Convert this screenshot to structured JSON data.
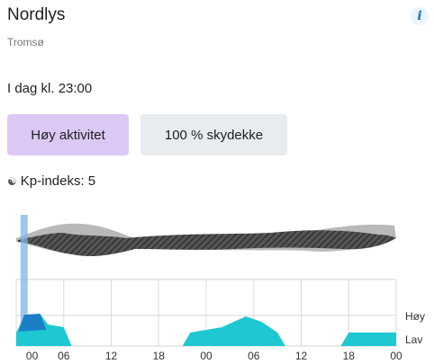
{
  "header": {
    "title": "Nordlys",
    "location": "Tromsø",
    "info_icon": "info-icon",
    "info_label": "i"
  },
  "forecast": {
    "time": "I dag kl. 23:00",
    "activity_label": "Høy aktivitet",
    "cloud_label": "100 % skydekke",
    "kp_label": "Kp-indeks: 5",
    "kp_icon": "aurora-icon"
  },
  "colors": {
    "activity_pill": "#dcc8f5",
    "cloud_pill": "#e9ecef",
    "aurora": "#1ec8d2",
    "aurora_high": "#1a7fc7",
    "selection": "#7fb6e8",
    "cloud_dark": "#3a3a3a",
    "cloud_light": "#b4b4b4"
  },
  "chart_data": {
    "type": "area",
    "x_ticks": [
      "00",
      "06",
      "12",
      "18",
      "00",
      "06",
      "12",
      "18",
      "00"
    ],
    "y_labels": [
      "Høy",
      "Lav"
    ],
    "aurora": [
      {
        "hour": 0,
        "level": 0.25
      },
      {
        "hour": 1,
        "level": 0.55
      },
      {
        "hour": 3,
        "level": 0.6
      },
      {
        "hour": 4,
        "level": 0.4
      },
      {
        "hour": 6,
        "level": 0.35
      },
      {
        "hour": 7,
        "level": 0
      },
      {
        "hour": 21,
        "level": 0
      },
      {
        "hour": 22,
        "level": 0.25
      },
      {
        "hour": 26,
        "level": 0.35
      },
      {
        "hour": 29,
        "level": 0.55
      },
      {
        "hour": 31,
        "level": 0.45
      },
      {
        "hour": 33,
        "level": 0.25
      },
      {
        "hour": 34,
        "level": 0
      },
      {
        "hour": 41,
        "level": 0
      },
      {
        "hour": 42,
        "level": 0.25
      },
      {
        "hour": 48,
        "level": 0.25
      }
    ],
    "cloud_cover_hours": [
      0,
      48
    ],
    "selected_hour": 1
  }
}
